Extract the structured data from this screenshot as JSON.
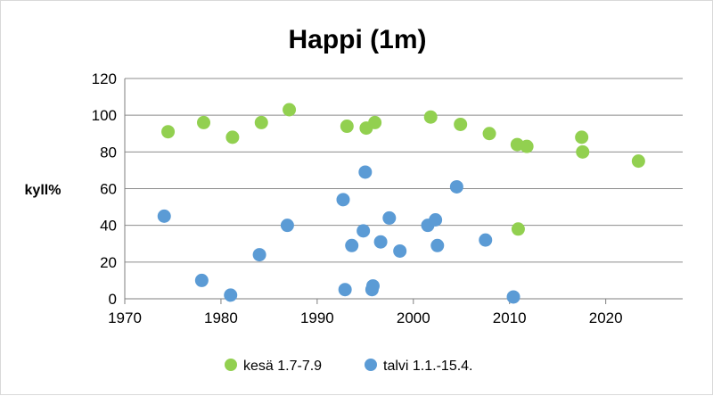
{
  "chart_data": {
    "type": "scatter",
    "title": "Happi (1m)",
    "xlabel": "",
    "ylabel": "kyll%",
    "xlim": [
      1970,
      2028
    ],
    "ylim": [
      0,
      120
    ],
    "x_ticks": [
      1970,
      1980,
      1990,
      2000,
      2010,
      2020
    ],
    "y_ticks": [
      0,
      20,
      40,
      60,
      80,
      100,
      120
    ],
    "grid": "horizontal",
    "legend_position": "bottom",
    "series": [
      {
        "name": "kesä 1.7-7.9",
        "color": "#92d050",
        "x": [
          1974.5,
          1978.2,
          1981.2,
          1984.2,
          1987.1,
          1993.1,
          1995.1,
          1996.0,
          2001.8,
          2004.9,
          2007.9,
          2010.8,
          2011.8,
          2017.5,
          2017.6,
          2023.4,
          2010.9
        ],
        "y": [
          91,
          96,
          88,
          96,
          103,
          94,
          93,
          96,
          99,
          95,
          90,
          84,
          83,
          88,
          80,
          75,
          38
        ]
      },
      {
        "name": "talvi 1.1.-15.4.",
        "color": "#5b9bd5",
        "x": [
          1974.1,
          1978.0,
          1981.0,
          1984.0,
          1986.9,
          1992.7,
          1992.9,
          1993.6,
          1994.8,
          1995.0,
          1995.7,
          1995.8,
          1996.6,
          1997.5,
          1998.6,
          2001.5,
          2002.3,
          2002.5,
          2004.5,
          2007.5,
          2010.4
        ],
        "y": [
          45,
          10,
          2,
          24,
          40,
          54,
          5,
          29,
          37,
          69,
          5,
          7,
          31,
          44,
          26,
          40,
          43,
          29,
          61,
          32,
          1
        ]
      }
    ]
  }
}
